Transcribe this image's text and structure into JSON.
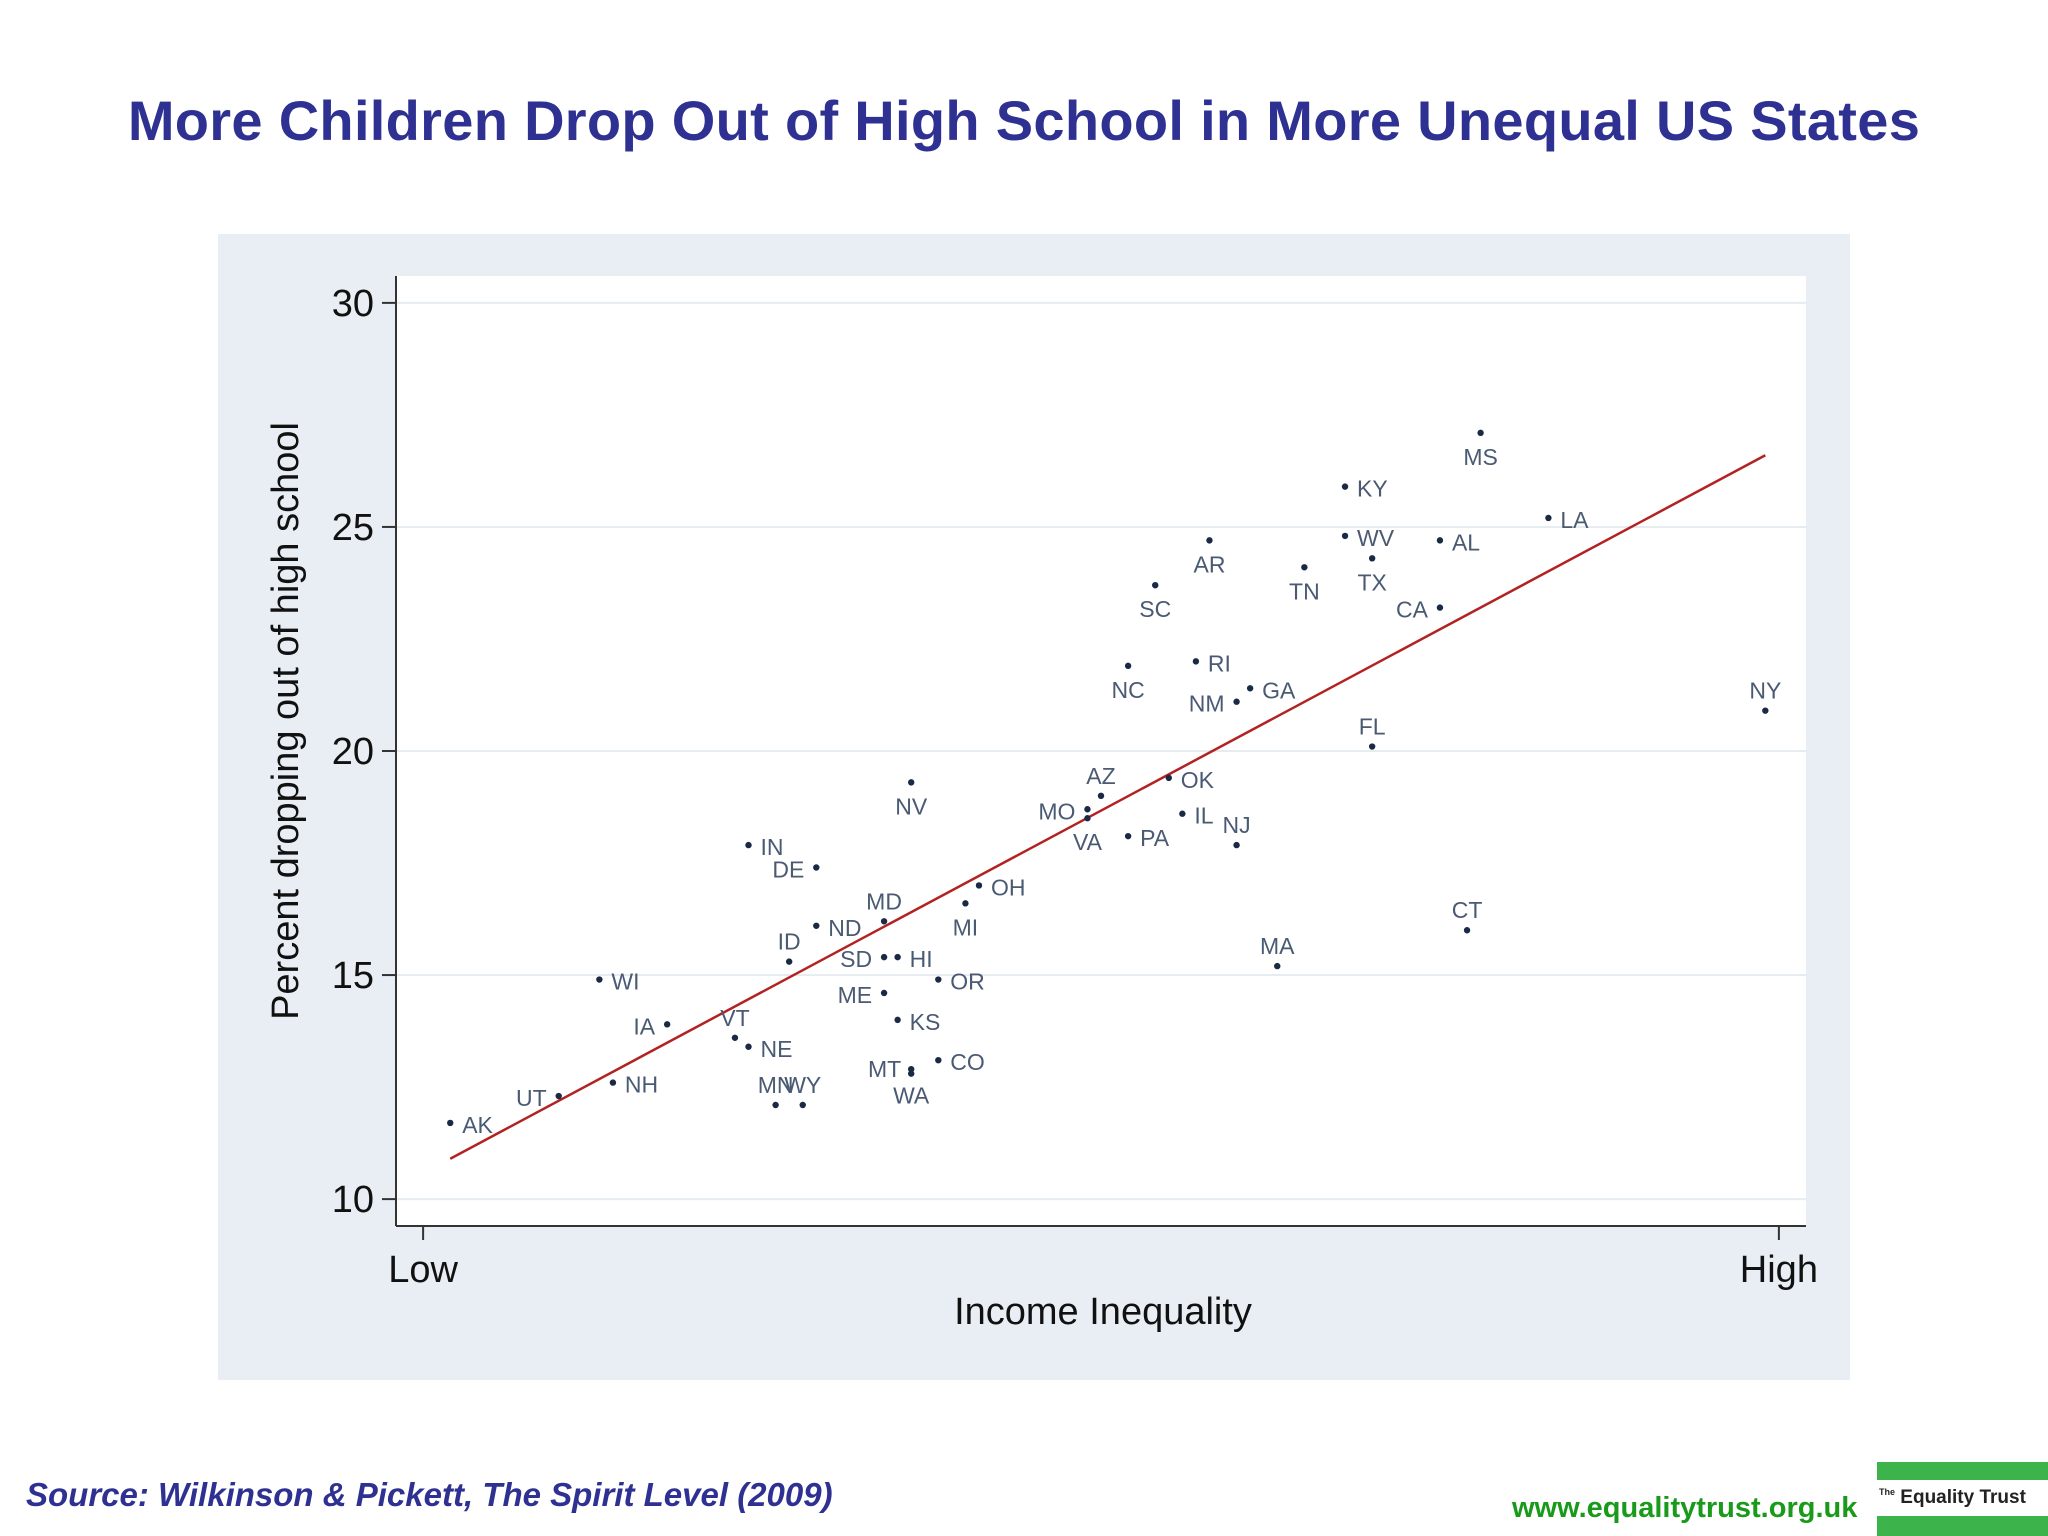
{
  "page": {
    "title": "More Children Drop Out of High School in More Unequal US States",
    "source": "Source: Wilkinson & Pickett, The Spirit Level (2009)",
    "website": "www.equalitytrust.org.uk",
    "logo_prefix": "The",
    "logo_name": "Equality Trust"
  },
  "colors": {
    "title": "#2e3192",
    "plot_background": "#e8eef3",
    "plot_area": "#ffffff",
    "fit_line": "#b22222",
    "point": "#1a2a44",
    "point_label": "#4a5a72",
    "website": "#1a9a1a",
    "logo_green": "#3cb44b"
  },
  "chart_data": {
    "type": "scatter",
    "title": "",
    "xlabel": "Income Inequality",
    "ylabel": "Percent dropping out of high school",
    "x_ticks": [
      {
        "value": 0,
        "label": "Low"
      },
      {
        "value": 1,
        "label": "High"
      }
    ],
    "y_ticks": [
      10,
      15,
      20,
      25,
      30
    ],
    "xlim": [
      -0.02,
      1.02
    ],
    "ylim": [
      9.4,
      30.6
    ],
    "grid": "horizontal",
    "points": [
      {
        "label": "AK",
        "x": 0.02,
        "y": 11.7
      },
      {
        "label": "UT",
        "x": 0.1,
        "y": 12.3
      },
      {
        "label": "NH",
        "x": 0.14,
        "y": 12.6
      },
      {
        "label": "WI",
        "x": 0.13,
        "y": 14.9
      },
      {
        "label": "IA",
        "x": 0.18,
        "y": 13.9
      },
      {
        "label": "VT",
        "x": 0.23,
        "y": 13.6
      },
      {
        "label": "NE",
        "x": 0.24,
        "y": 13.4
      },
      {
        "label": "MN",
        "x": 0.26,
        "y": 12.1
      },
      {
        "label": "WY",
        "x": 0.28,
        "y": 12.1
      },
      {
        "label": "IN",
        "x": 0.24,
        "y": 17.9
      },
      {
        "label": "DE",
        "x": 0.29,
        "y": 17.4
      },
      {
        "label": "ID",
        "x": 0.27,
        "y": 15.3
      },
      {
        "label": "ND",
        "x": 0.29,
        "y": 16.1
      },
      {
        "label": "MD",
        "x": 0.34,
        "y": 16.2
      },
      {
        "label": "SD",
        "x": 0.34,
        "y": 15.4
      },
      {
        "label": "HI",
        "x": 0.35,
        "y": 15.4
      },
      {
        "label": "ME",
        "x": 0.34,
        "y": 14.6
      },
      {
        "label": "KS",
        "x": 0.35,
        "y": 14.0
      },
      {
        "label": "OR",
        "x": 0.38,
        "y": 14.9
      },
      {
        "label": "MT",
        "x": 0.36,
        "y": 12.9
      },
      {
        "label": "WA",
        "x": 0.36,
        "y": 12.8
      },
      {
        "label": "CO",
        "x": 0.38,
        "y": 13.1
      },
      {
        "label": "NV",
        "x": 0.36,
        "y": 19.3
      },
      {
        "label": "MI",
        "x": 0.4,
        "y": 16.6
      },
      {
        "label": "OH",
        "x": 0.41,
        "y": 17.0
      },
      {
        "label": "MO",
        "x": 0.49,
        "y": 18.7
      },
      {
        "label": "AZ",
        "x": 0.5,
        "y": 19.0
      },
      {
        "label": "VA",
        "x": 0.49,
        "y": 18.5
      },
      {
        "label": "PA",
        "x": 0.52,
        "y": 18.1
      },
      {
        "label": "OK",
        "x": 0.55,
        "y": 19.4
      },
      {
        "label": "IL",
        "x": 0.56,
        "y": 18.6
      },
      {
        "label": "NJ",
        "x": 0.6,
        "y": 17.9
      },
      {
        "label": "NC",
        "x": 0.52,
        "y": 21.9
      },
      {
        "label": "SC",
        "x": 0.54,
        "y": 23.7
      },
      {
        "label": "AR",
        "x": 0.58,
        "y": 24.7
      },
      {
        "label": "RI",
        "x": 0.57,
        "y": 22.0
      },
      {
        "label": "NM",
        "x": 0.6,
        "y": 21.1
      },
      {
        "label": "GA",
        "x": 0.61,
        "y": 21.4
      },
      {
        "label": "TN",
        "x": 0.65,
        "y": 24.1
      },
      {
        "label": "KY",
        "x": 0.68,
        "y": 25.9
      },
      {
        "label": "WV",
        "x": 0.68,
        "y": 24.8
      },
      {
        "label": "TX",
        "x": 0.7,
        "y": 24.3
      },
      {
        "label": "AL",
        "x": 0.75,
        "y": 24.7
      },
      {
        "label": "CA",
        "x": 0.75,
        "y": 23.2
      },
      {
        "label": "MS",
        "x": 0.78,
        "y": 27.1
      },
      {
        "label": "LA",
        "x": 0.83,
        "y": 25.2
      },
      {
        "label": "FL",
        "x": 0.7,
        "y": 20.1
      },
      {
        "label": "MA",
        "x": 0.63,
        "y": 15.2
      },
      {
        "label": "CT",
        "x": 0.77,
        "y": 16.0
      },
      {
        "label": "NY",
        "x": 0.99,
        "y": 20.9
      }
    ],
    "fit_line": {
      "x": [
        0.02,
        0.99
      ],
      "y": [
        10.9,
        26.6
      ]
    }
  }
}
